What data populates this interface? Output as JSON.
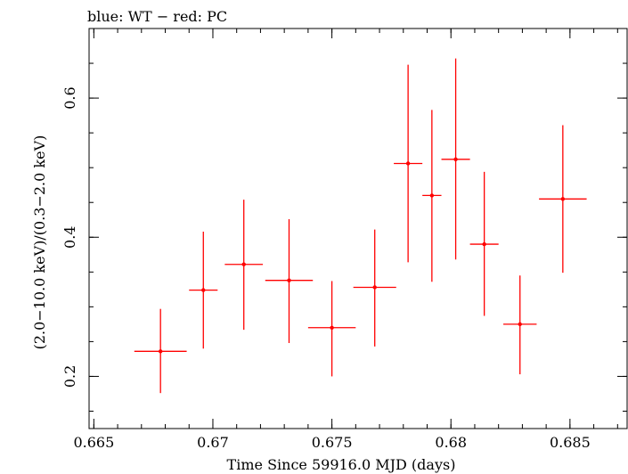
{
  "chart_data": {
    "type": "scatter",
    "title": "blue: WT − red: PC",
    "xlabel": "Time Since 59916.0 MJD (days)",
    "ylabel": "(2.0−10.0 keV)/(0.3−2.0 keV)",
    "xlim": [
      0.6648,
      0.6874
    ],
    "ylim": [
      0.125,
      0.7
    ],
    "xticks": [
      0.665,
      0.67,
      0.675,
      0.68,
      0.685
    ],
    "xtick_labels": [
      "0.665",
      "0.67",
      "0.675",
      "0.68",
      "0.685"
    ],
    "yticks": [
      0.2,
      0.4,
      0.6
    ],
    "ytick_labels": [
      "0.2",
      "0.4",
      "0.6"
    ],
    "grid": false,
    "series": [
      {
        "color": "#ff0000",
        "points": [
          {
            "x": 0.6678,
            "y": 0.236,
            "xerr": 0.0011,
            "ylo": 0.176,
            "yhi": 0.297
          },
          {
            "x": 0.6696,
            "y": 0.324,
            "xerr": 0.0006,
            "ylo": 0.24,
            "yhi": 0.408
          },
          {
            "x": 0.6713,
            "y": 0.361,
            "xerr": 0.0008,
            "ylo": 0.267,
            "yhi": 0.454
          },
          {
            "x": 0.6732,
            "y": 0.338,
            "xerr": 0.001,
            "ylo": 0.248,
            "yhi": 0.426
          },
          {
            "x": 0.675,
            "y": 0.27,
            "xerr": 0.001,
            "ylo": 0.2,
            "yhi": 0.337
          },
          {
            "x": 0.6768,
            "y": 0.328,
            "xerr": 0.0009,
            "ylo": 0.243,
            "yhi": 0.411
          },
          {
            "x": 0.6782,
            "y": 0.506,
            "xerr": 0.0006,
            "ylo": 0.364,
            "yhi": 0.648
          },
          {
            "x": 0.6792,
            "y": 0.46,
            "xerr": 0.0004,
            "ylo": 0.336,
            "yhi": 0.583
          },
          {
            "x": 0.6802,
            "y": 0.512,
            "xerr": 0.0006,
            "ylo": 0.368,
            "yhi": 0.657
          },
          {
            "x": 0.6814,
            "y": 0.39,
            "xerr": 0.0006,
            "ylo": 0.287,
            "yhi": 0.494
          },
          {
            "x": 0.6829,
            "y": 0.275,
            "xerr": 0.0007,
            "ylo": 0.203,
            "yhi": 0.345
          },
          {
            "x": 0.6847,
            "y": 0.455,
            "xerr": 0.001,
            "ylo": 0.349,
            "yhi": 0.561
          }
        ]
      }
    ]
  }
}
